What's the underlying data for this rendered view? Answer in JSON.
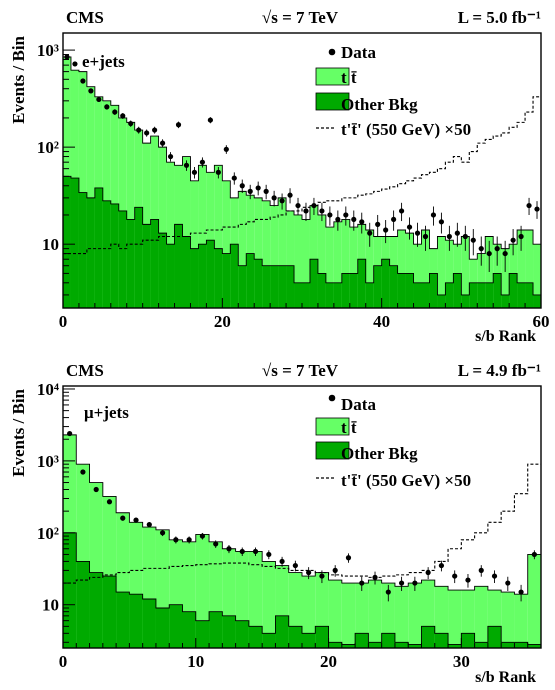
{
  "colors": {
    "ttbar": "#66ff66",
    "other_bkg": "#00aa00",
    "data": "#000000",
    "signal": "#000000"
  },
  "chart_data": [
    {
      "type": "histogram",
      "panel": "e+jets",
      "experiment_label": "CMS",
      "energy_label": "√s = 7 TeV",
      "lumi_label": "L = 5.0 fb⁻¹",
      "channel_label": "e+jets",
      "xlabel": "s/b Rank",
      "ylabel": "Events / Bin",
      "xlim": [
        0,
        60
      ],
      "ylim": [
        2.2,
        1500
      ],
      "yscale": "log",
      "grid": false,
      "legend_position": "top-right",
      "x_ticks": [
        0,
        20,
        40,
        60
      ],
      "y_ticks": [
        10,
        100,
        1000
      ],
      "y_tick_labels": [
        "10",
        "10²",
        "10³"
      ],
      "legend": [
        "Data",
        "t t̄",
        "Other Bkg",
        "t't̄' (550 GeV) ×50"
      ],
      "bin_edges": [
        0,
        1,
        2,
        3,
        4,
        5,
        6,
        7,
        8,
        9,
        10,
        11,
        12,
        13,
        14,
        15,
        16,
        17,
        18,
        19,
        20,
        21,
        22,
        23,
        24,
        25,
        26,
        27,
        28,
        29,
        30,
        31,
        32,
        33,
        34,
        35,
        36,
        37,
        38,
        39,
        40,
        41,
        42,
        43,
        44,
        45,
        46,
        47,
        48,
        49,
        50,
        51,
        52,
        53,
        54,
        55,
        56,
        57,
        58,
        59,
        60
      ],
      "series": [
        {
          "name": "Other Bkg",
          "kind": "filled",
          "values": [
            50,
            48,
            34,
            30,
            38,
            28,
            26,
            22,
            18,
            24,
            16,
            18,
            13,
            10,
            16,
            12,
            9,
            10,
            11,
            9,
            8,
            10,
            6,
            8,
            7,
            6,
            6,
            6,
            6,
            4,
            4,
            7,
            5,
            4,
            4,
            5,
            5,
            7,
            4,
            6,
            7,
            6,
            5,
            5,
            4,
            4,
            5,
            3,
            4,
            5,
            3,
            4,
            4,
            4,
            5,
            3,
            5,
            4,
            4,
            3
          ]
        },
        {
          "name": "tt",
          "kind": "stacked",
          "values": [
            850,
            620,
            600,
            420,
            330,
            300,
            270,
            200,
            180,
            150,
            110,
            130,
            100,
            70,
            65,
            80,
            45,
            65,
            55,
            65,
            45,
            30,
            35,
            32,
            30,
            28,
            25,
            30,
            22,
            20,
            18,
            25,
            20,
            15,
            17,
            18,
            15,
            16,
            14,
            12,
            12,
            12,
            14,
            13,
            10,
            14,
            9,
            12,
            11,
            10,
            12,
            7,
            8,
            12,
            10,
            9,
            10,
            14,
            14,
            10
          ]
        },
        {
          "name": "t't' (550 GeV) x50",
          "kind": "dashed",
          "values": [
            8,
            8,
            8,
            9,
            9,
            9,
            10,
            9,
            10,
            10,
            11,
            11,
            12,
            12,
            12,
            12,
            13,
            13,
            14,
            14,
            15,
            15,
            16,
            17,
            18,
            18,
            19,
            20,
            22,
            22,
            24,
            25,
            27,
            28,
            28,
            30,
            30,
            32,
            33,
            35,
            37,
            39,
            42,
            45,
            48,
            52,
            55,
            60,
            70,
            80,
            70,
            90,
            110,
            120,
            130,
            140,
            160,
            180,
            230,
            330
          ]
        },
        {
          "name": "Data",
          "kind": "points",
          "values": [
            850,
            720,
            480,
            380,
            310,
            260,
            230,
            210,
            175,
            150,
            140,
            150,
            110,
            80,
            170,
            65,
            55,
            70,
            190,
            55,
            95,
            48,
            40,
            35,
            38,
            35,
            30,
            28,
            32,
            25,
            22,
            25,
            22,
            20,
            18,
            20,
            18,
            17,
            13,
            16,
            14,
            18,
            22,
            15,
            13,
            12,
            20,
            17,
            12,
            13,
            12,
            11,
            9,
            8,
            9,
            8,
            11,
            12,
            25,
            23
          ]
        }
      ]
    },
    {
      "type": "histogram",
      "panel": "mu+jets",
      "experiment_label": "CMS",
      "energy_label": "√s = 7 TeV",
      "lumi_label": "L = 4.9 fb⁻¹",
      "channel_label": "μ+jets",
      "xlabel": "s/b Rank",
      "ylabel": "Events / Bin",
      "xlim": [
        0,
        36
      ],
      "ylim": [
        2.5,
        11000
      ],
      "yscale": "log",
      "grid": false,
      "legend_position": "top-right",
      "x_ticks": [
        0,
        10,
        20,
        30
      ],
      "y_ticks": [
        10,
        100,
        1000,
        10000
      ],
      "y_tick_labels": [
        "10",
        "10²",
        "10³",
        "10⁴"
      ],
      "legend": [
        "Data",
        "t t̄",
        "Other Bkg",
        "t't̄' (550 GeV) ×50"
      ],
      "bin_edges": [
        0,
        1,
        2,
        3,
        4,
        5,
        6,
        7,
        8,
        9,
        10,
        11,
        12,
        13,
        14,
        15,
        16,
        17,
        18,
        19,
        20,
        21,
        22,
        23,
        24,
        25,
        26,
        27,
        28,
        29,
        30,
        31,
        32,
        33,
        34,
        35,
        36
      ],
      "series": [
        {
          "name": "Other Bkg",
          "kind": "filled",
          "values": [
            100,
            40,
            28,
            25,
            15,
            14,
            12,
            9,
            10,
            8,
            6,
            8,
            7,
            6,
            5,
            4,
            7,
            5,
            4,
            5,
            3,
            2.8,
            4,
            3,
            4,
            3,
            2.8,
            5,
            4,
            2.8,
            4,
            3,
            5,
            3,
            3,
            2.8
          ]
        },
        {
          "name": "tt",
          "kind": "stacked",
          "values": [
            2300,
            900,
            500,
            320,
            190,
            140,
            120,
            110,
            80,
            75,
            95,
            75,
            60,
            55,
            55,
            40,
            35,
            28,
            25,
            28,
            22,
            20,
            20,
            22,
            20,
            18,
            20,
            22,
            18,
            16,
            16,
            18,
            16,
            15,
            14,
            50
          ]
        },
        {
          "name": "t't' (550 GeV) x50",
          "kind": "dashed",
          "values": [
            20,
            22,
            24,
            26,
            28,
            30,
            32,
            32,
            34,
            35,
            36,
            37,
            38,
            38,
            36,
            34,
            32,
            30,
            30,
            28,
            26,
            25,
            25,
            24,
            25,
            26,
            28,
            30,
            40,
            60,
            80,
            100,
            140,
            200,
            350,
            900
          ]
        },
        {
          "name": "Data",
          "kind": "points",
          "values": [
            2400,
            700,
            400,
            270,
            160,
            150,
            130,
            100,
            80,
            80,
            90,
            70,
            60,
            55,
            55,
            50,
            40,
            35,
            28,
            25,
            30,
            45,
            20,
            24,
            15,
            20,
            20,
            28,
            35,
            25,
            22,
            30,
            25,
            20,
            15,
            50
          ]
        }
      ]
    }
  ]
}
